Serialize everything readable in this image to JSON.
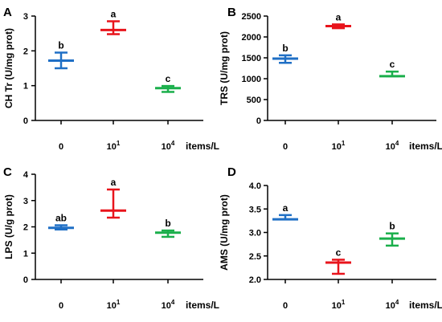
{
  "chart_data": [
    {
      "panel": "A",
      "type": "scatter",
      "ylabel": "CH Tr (U/mg prot)",
      "xunit": "items/L",
      "categories": [
        {
          "base": "0",
          "exp": ""
        },
        {
          "base": "10",
          "exp": "1"
        },
        {
          "base": "10",
          "exp": "4"
        }
      ],
      "ylim": [
        0,
        3
      ],
      "yticks": [
        0,
        1,
        2,
        3
      ],
      "ytick_labels": [
        "0",
        "1",
        "2",
        "3"
      ],
      "points": [
        {
          "mean": 1.72,
          "low": 1.5,
          "high": 1.95,
          "sig": "b",
          "color": "#1f6fc5"
        },
        {
          "mean": 2.6,
          "low": 2.48,
          "high": 2.85,
          "sig": "a",
          "color": "#e8141c"
        },
        {
          "mean": 0.93,
          "low": 0.82,
          "high": 0.99,
          "sig": "c",
          "color": "#1aaf4b"
        }
      ]
    },
    {
      "panel": "B",
      "type": "scatter",
      "ylabel": "TRS (U/mg prot)",
      "xunit": "items/L",
      "categories": [
        {
          "base": "0",
          "exp": ""
        },
        {
          "base": "10",
          "exp": "1"
        },
        {
          "base": "10",
          "exp": "4"
        }
      ],
      "ylim": [
        0,
        2500
      ],
      "yticks": [
        0,
        500,
        1000,
        1500,
        2000,
        2500
      ],
      "ytick_labels": [
        "0",
        "500",
        "1000",
        "1500",
        "2000",
        "2500"
      ],
      "points": [
        {
          "mean": 1480,
          "low": 1380,
          "high": 1560,
          "sig": "b",
          "color": "#1f6fc5"
        },
        {
          "mean": 2260,
          "low": 2210,
          "high": 2300,
          "sig": "a",
          "color": "#e8141c"
        },
        {
          "mean": 1060,
          "low": 1060,
          "high": 1170,
          "sig": "c",
          "color": "#1aaf4b"
        }
      ]
    },
    {
      "panel": "C",
      "type": "scatter",
      "ylabel": "LPS (U/g prot)",
      "xunit": "items/L",
      "categories": [
        {
          "base": "0",
          "exp": ""
        },
        {
          "base": "10",
          "exp": "1"
        },
        {
          "base": "10",
          "exp": "4"
        }
      ],
      "ylim": [
        0,
        4
      ],
      "yticks": [
        0,
        1,
        2,
        3,
        4
      ],
      "ytick_labels": [
        "0",
        "1",
        "2",
        "3",
        "4"
      ],
      "points": [
        {
          "mean": 1.96,
          "low": 1.9,
          "high": 2.06,
          "sig": "ab",
          "color": "#1f6fc5"
        },
        {
          "mean": 2.62,
          "low": 2.35,
          "high": 3.42,
          "sig": "a",
          "color": "#e8141c"
        },
        {
          "mean": 1.78,
          "low": 1.62,
          "high": 1.86,
          "sig": "b",
          "color": "#1aaf4b"
        }
      ]
    },
    {
      "panel": "D",
      "type": "scatter",
      "ylabel": "AMS (U/mg prot)",
      "xunit": "items/L",
      "categories": [
        {
          "base": "0",
          "exp": ""
        },
        {
          "base": "10",
          "exp": "1"
        },
        {
          "base": "10",
          "exp": "4"
        }
      ],
      "ylim": [
        2.0,
        4.0
      ],
      "yticks": [
        2.0,
        2.5,
        3.0,
        3.5,
        4.0
      ],
      "ytick_labels": [
        "2.0",
        "2.5",
        "3.0",
        "3.5",
        "4.0"
      ],
      "points": [
        {
          "mean": 3.28,
          "low": 3.28,
          "high": 3.37,
          "sig": "a",
          "color": "#1f6fc5"
        },
        {
          "mean": 2.36,
          "low": 2.12,
          "high": 2.42,
          "sig": "c",
          "color": "#e8141c"
        },
        {
          "mean": 2.87,
          "low": 2.72,
          "high": 2.98,
          "sig": "b",
          "color": "#1aaf4b"
        }
      ]
    }
  ]
}
